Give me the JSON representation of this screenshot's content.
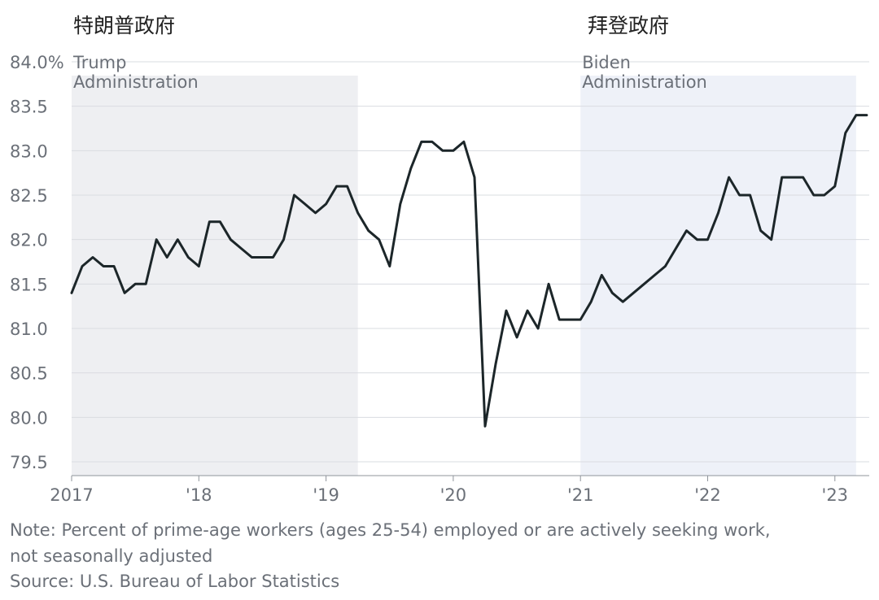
{
  "labels_zh": {
    "trump": "特朗普政府",
    "biden": "拜登政府"
  },
  "chart_data": {
    "type": "line",
    "title": "",
    "xlabel": "",
    "ylabel": "",
    "ylim": [
      79.5,
      84.0
    ],
    "y_ticks": [
      {
        "v": 84.0,
        "label": "84.0%"
      },
      {
        "v": 83.5,
        "label": "83.5"
      },
      {
        "v": 83.0,
        "label": "83.0"
      },
      {
        "v": 82.5,
        "label": "82.5"
      },
      {
        "v": 82.0,
        "label": "82.0"
      },
      {
        "v": 81.5,
        "label": "81.5"
      },
      {
        "v": 81.0,
        "label": "81.0"
      },
      {
        "v": 80.5,
        "label": "80.5"
      },
      {
        "v": 80.0,
        "label": "80.0"
      },
      {
        "v": 79.5,
        "label": "79.5"
      }
    ],
    "x_ticks": [
      {
        "date": "2017-01",
        "label": "2017"
      },
      {
        "date": "2018-01",
        "label": "'18"
      },
      {
        "date": "2019-01",
        "label": "'19"
      },
      {
        "date": "2020-01",
        "label": "'20"
      },
      {
        "date": "2021-01",
        "label": "'21"
      },
      {
        "date": "2022-01",
        "label": "'22"
      },
      {
        "date": "2023-01",
        "label": "'23"
      }
    ],
    "grid": true,
    "series": [
      {
        "color": "#1c2629",
        "x": [
          "2017-01",
          "2017-02",
          "2017-03",
          "2017-04",
          "2017-05",
          "2017-06",
          "2017-07",
          "2017-08",
          "2017-09",
          "2017-10",
          "2017-11",
          "2017-12",
          "2018-01",
          "2018-02",
          "2018-03",
          "2018-04",
          "2018-05",
          "2018-06",
          "2018-07",
          "2018-08",
          "2018-09",
          "2018-10",
          "2018-11",
          "2018-12",
          "2019-01",
          "2019-02",
          "2019-03",
          "2019-04",
          "2019-05",
          "2019-06",
          "2019-07",
          "2019-08",
          "2019-09",
          "2019-10",
          "2019-11",
          "2019-12",
          "2020-01",
          "2020-02",
          "2020-03",
          "2020-04",
          "2020-05",
          "2020-06",
          "2020-07",
          "2020-08",
          "2020-09",
          "2020-10",
          "2020-11",
          "2020-12",
          "2021-01",
          "2021-02",
          "2021-03",
          "2021-04",
          "2021-05",
          "2021-06",
          "2021-07",
          "2021-08",
          "2021-09",
          "2021-10",
          "2021-11",
          "2021-12",
          "2022-01",
          "2022-02",
          "2022-03",
          "2022-04",
          "2022-05",
          "2022-06",
          "2022-07",
          "2022-08",
          "2022-09",
          "2022-10",
          "2022-11",
          "2022-12",
          "2023-01",
          "2023-02",
          "2023-03",
          "2023-04"
        ],
        "values": [
          81.4,
          81.7,
          81.8,
          81.7,
          81.7,
          81.4,
          81.5,
          81.5,
          82.0,
          81.8,
          82.0,
          81.8,
          81.7,
          82.2,
          82.2,
          82.0,
          81.9,
          81.8,
          81.8,
          81.8,
          82.0,
          82.5,
          82.4,
          82.3,
          82.4,
          82.6,
          82.6,
          82.3,
          82.1,
          82.0,
          81.7,
          82.4,
          82.8,
          83.1,
          83.1,
          83.0,
          83.0,
          83.1,
          82.7,
          79.9,
          80.6,
          81.2,
          80.9,
          81.2,
          81.0,
          81.5,
          81.1,
          81.1,
          81.1,
          81.3,
          81.6,
          81.4,
          81.3,
          81.4,
          81.5,
          81.6,
          81.7,
          81.9,
          82.1,
          82.0,
          82.0,
          82.3,
          82.7,
          82.5,
          82.5,
          82.1,
          82.0,
          82.7,
          82.7,
          82.7,
          82.5,
          82.5,
          82.6,
          83.2,
          83.4,
          83.4
        ]
      }
    ],
    "shaded_regions": [
      {
        "start": "2017-01",
        "end": "2019-04",
        "label_line1": "Trump",
        "label_line2": "Administration",
        "color": "#eeeff2"
      },
      {
        "start": "2021-01",
        "end": "2023-03",
        "label_line1": "Biden",
        "label_line2": "Administration",
        "color": "#eef1f8"
      }
    ]
  },
  "footer": {
    "note_line1": "Note: Percent of prime-age workers (ages 25-54) employed or are actively seeking work,",
    "note_line2": "not seasonally adjusted",
    "source": "Source: U.S. Bureau of Labor Statistics"
  }
}
